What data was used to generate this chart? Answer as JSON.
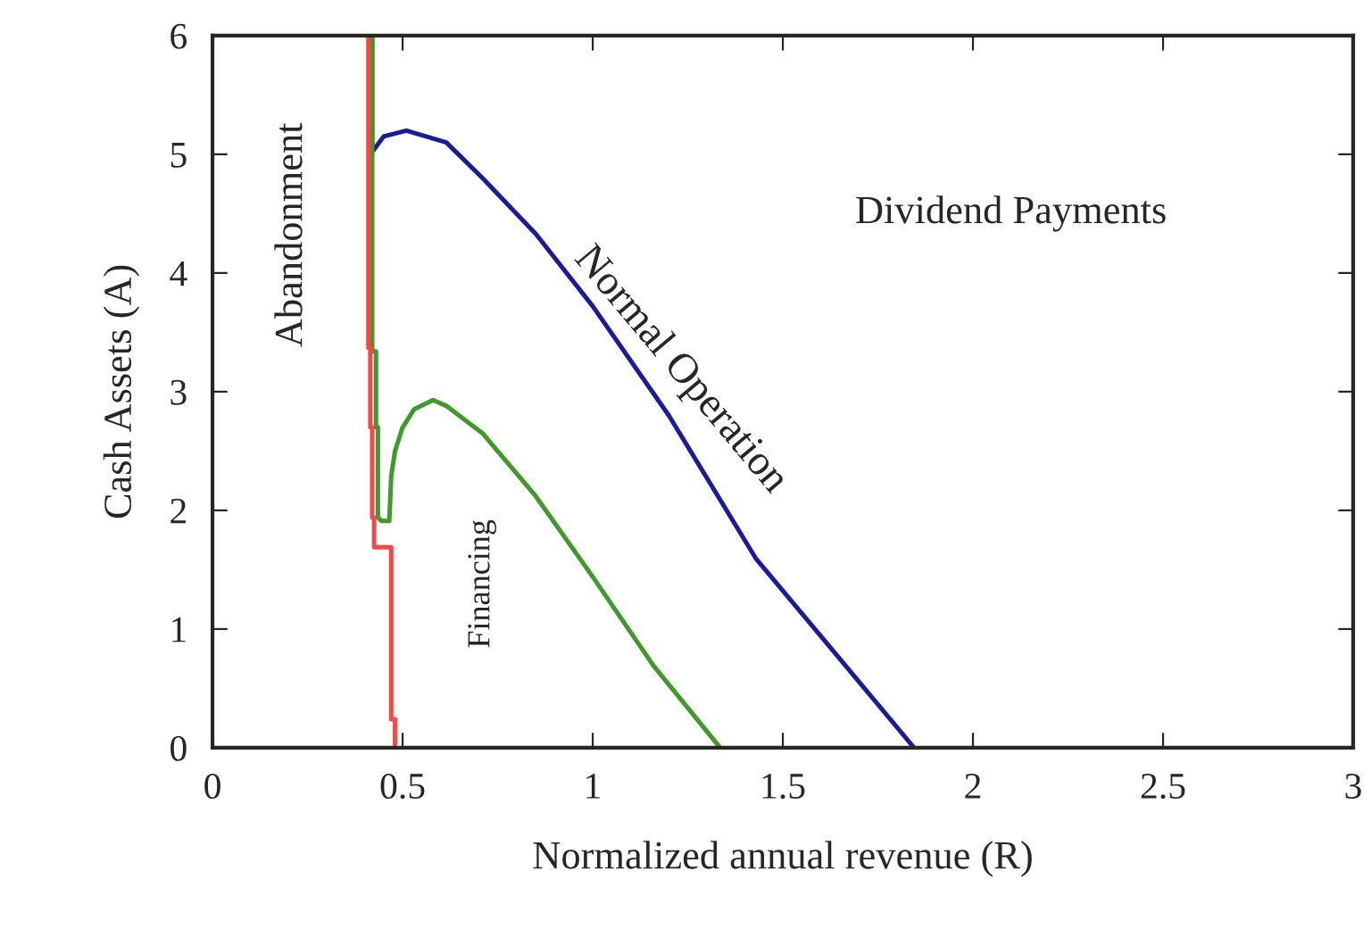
{
  "chart_data": {
    "type": "line",
    "xlabel": "Normalized annual revenue (R)",
    "ylabel": "Cash Assets (A)",
    "xlim": [
      0,
      3
    ],
    "ylim": [
      0,
      6
    ],
    "xticks": [
      0,
      0.5,
      1,
      1.5,
      2,
      2.5,
      3
    ],
    "yticks": [
      0,
      1,
      2,
      3,
      4,
      5,
      6
    ],
    "grid": false,
    "legend": false,
    "marker": "none",
    "line_style": "solid",
    "series": [
      {
        "color": "#1a1a9c",
        "x": [
          0.42,
          0.42,
          0.45,
          0.51,
          0.615,
          0.71,
          0.85,
          1.0,
          1.2,
          1.43,
          1.6,
          1.845
        ],
        "values": [
          6,
          5.02,
          5.15,
          5.2,
          5.1,
          4.8,
          4.33,
          3.72,
          2.8,
          1.59,
          0.94,
          0
        ]
      },
      {
        "color": "#3f9a2a",
        "x": [
          0.42,
          0.42,
          0.43,
          0.43,
          0.435,
          0.435,
          0.445,
          0.465,
          0.47,
          0.48,
          0.5,
          0.53,
          0.58,
          0.615,
          0.71,
          0.85,
          1.0,
          1.16,
          1.335
        ],
        "values": [
          6,
          3.34,
          3.34,
          2.7,
          2.7,
          1.94,
          1.91,
          1.91,
          2.29,
          2.5,
          2.7,
          2.85,
          2.93,
          2.88,
          2.65,
          2.12,
          1.44,
          0.69,
          0
        ]
      },
      {
        "color": "#f04a4a",
        "x": [
          0.41,
          0.41,
          0.415,
          0.415,
          0.42,
          0.42,
          0.425,
          0.425,
          0.47,
          0.47,
          0.48,
          0.48
        ],
        "values": [
          6,
          3.37,
          3.37,
          2.7,
          2.7,
          1.94,
          1.94,
          1.69,
          1.69,
          0.24,
          0.24,
          0
        ]
      }
    ],
    "annotations": [
      "Abandonment",
      "Normal Operation",
      "Dividend Payments",
      "Financing"
    ]
  }
}
